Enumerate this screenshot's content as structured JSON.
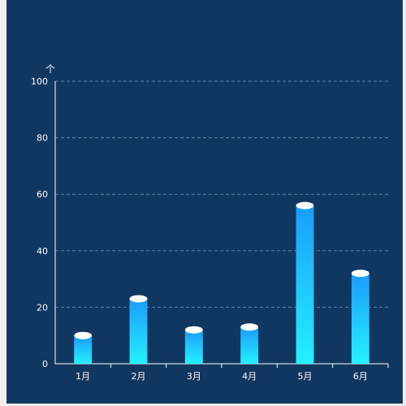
{
  "chart_data": {
    "type": "bar",
    "unit": "个",
    "categories": [
      "1月",
      "2月",
      "3月",
      "4月",
      "5月",
      "6月"
    ],
    "values": [
      10,
      23,
      12,
      13,
      56,
      32
    ],
    "ylim": [
      0,
      100
    ],
    "yticks": [
      0,
      20,
      40,
      60,
      80,
      100
    ],
    "grid": true,
    "colors": {
      "background": "#103760",
      "bar_top": "#1a9cff",
      "bar_bottom": "#25f1ff",
      "cap": "#ffffff",
      "grid": "#5e86a8",
      "axis": "#ffffff",
      "text": "#ffffff"
    }
  }
}
